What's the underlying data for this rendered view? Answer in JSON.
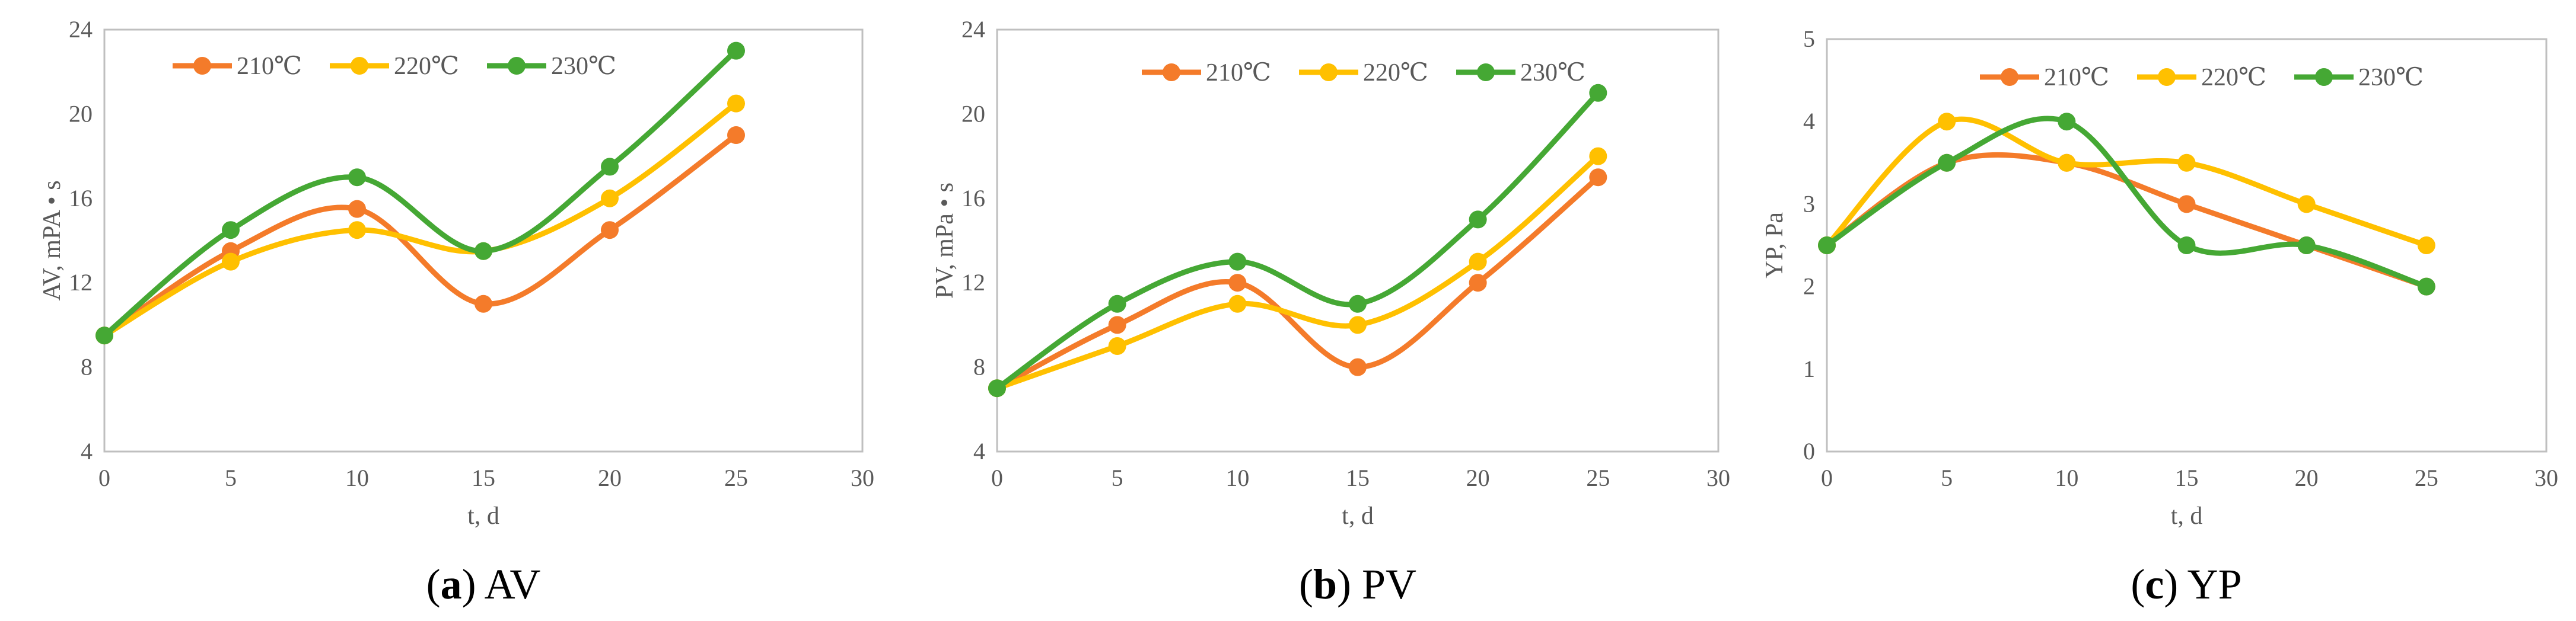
{
  "colors": {
    "210": "#F47B2A",
    "220": "#FFC000",
    "230": "#45A834",
    "axis": "#BFBFBF",
    "text": "#595959"
  },
  "chart_data": [
    {
      "type": "line",
      "caption_letter": "a",
      "caption_text": "AV",
      "xlabel": "t, d",
      "ylabel": "AV, mPA • s",
      "xlim": [
        0,
        30
      ],
      "ylim": [
        4,
        24
      ],
      "xticks": [
        0,
        5,
        10,
        15,
        20,
        25,
        30
      ],
      "yticks": [
        4,
        8,
        12,
        16,
        20,
        24
      ],
      "x": [
        0,
        5,
        10,
        15,
        20,
        25
      ],
      "legend_position": "top-left",
      "series": [
        {
          "name": "210℃",
          "color_key": "210",
          "values": [
            9.5,
            13.5,
            15.5,
            11,
            14.5,
            19
          ]
        },
        {
          "name": "220℃",
          "color_key": "220",
          "values": [
            9.5,
            13,
            14.5,
            13.5,
            16,
            20.5
          ]
        },
        {
          "name": "230℃",
          "color_key": "230",
          "values": [
            9.5,
            14.5,
            17,
            13.5,
            17.5,
            23
          ]
        }
      ]
    },
    {
      "type": "line",
      "caption_letter": "b",
      "caption_text": "PV",
      "xlabel": "t, d",
      "ylabel": "PV, mPa • s",
      "xlim": [
        0,
        30
      ],
      "ylim": [
        4,
        24
      ],
      "xticks": [
        0,
        5,
        10,
        15,
        20,
        25,
        30
      ],
      "yticks": [
        4,
        8,
        12,
        16,
        20,
        24
      ],
      "x": [
        0,
        5,
        10,
        15,
        20,
        25
      ],
      "legend_position": "top-center",
      "series": [
        {
          "name": "210℃",
          "color_key": "210",
          "values": [
            7,
            10,
            12,
            8,
            12,
            17
          ]
        },
        {
          "name": "220℃",
          "color_key": "220",
          "values": [
            7,
            9,
            11,
            10,
            13,
            18
          ]
        },
        {
          "name": "230℃",
          "color_key": "230",
          "values": [
            7,
            11,
            13,
            11,
            15,
            21
          ]
        }
      ]
    },
    {
      "type": "line",
      "caption_letter": "c",
      "caption_text": "YP",
      "xlabel": "t, d",
      "ylabel": "YP, Pa",
      "xlim": [
        0,
        30
      ],
      "ylim": [
        0,
        5
      ],
      "xticks": [
        0,
        5,
        10,
        15,
        20,
        25,
        30
      ],
      "yticks": [
        0,
        1,
        2,
        3,
        4,
        5
      ],
      "x": [
        0,
        5,
        10,
        15,
        20,
        25
      ],
      "legend_position": "top-center",
      "series": [
        {
          "name": "210℃",
          "color_key": "210",
          "values": [
            2.5,
            3.5,
            3.5,
            3,
            2.5,
            2
          ]
        },
        {
          "name": "220℃",
          "color_key": "220",
          "values": [
            2.5,
            4,
            3.5,
            3.5,
            3,
            2.5
          ]
        },
        {
          "name": "230℃",
          "color_key": "230",
          "values": [
            2.5,
            3.5,
            4,
            2.5,
            2.5,
            2
          ]
        }
      ]
    }
  ]
}
